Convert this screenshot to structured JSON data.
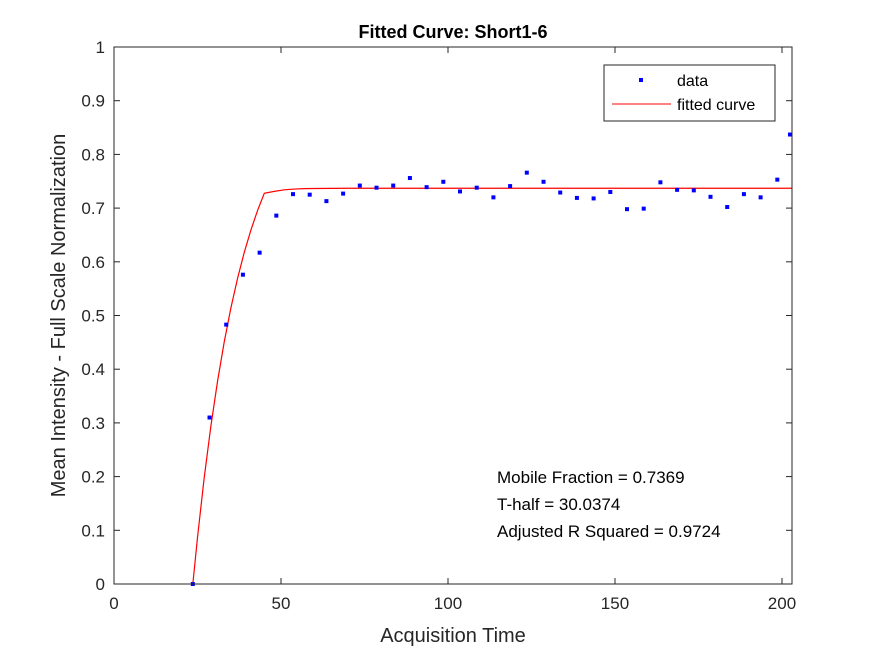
{
  "chart_data": {
    "type": "scatter",
    "title": "Fitted Curve: Short1-6",
    "xlabel": "Acquisition Time",
    "ylabel": "Mean Intensity - Full Scale Normalization",
    "xlim": [
      0,
      203
    ],
    "ylim": [
      0,
      1
    ],
    "xticks": [
      0,
      50,
      100,
      150,
      200
    ],
    "xtick_labels": [
      "0",
      "50",
      "100",
      "150",
      "200"
    ],
    "yticks": [
      0,
      0.1,
      0.2,
      0.3,
      0.4,
      0.5,
      0.6,
      0.7,
      0.8,
      0.9,
      1
    ],
    "ytick_labels": [
      "0",
      "0.1",
      "0.2",
      "0.3",
      "0.4",
      "0.5",
      "0.6",
      "0.7",
      "0.8",
      "0.9",
      "1"
    ],
    "grid": false,
    "legend_position": "top-right",
    "series": [
      {
        "name": "data",
        "kind": "points",
        "color": "#0000ff",
        "x": [
          23.6,
          28.6,
          33.6,
          38.6,
          43.6,
          48.6,
          53.6,
          58.6,
          63.6,
          68.6,
          73.6,
          78.6,
          83.6,
          88.6,
          93.6,
          98.6,
          103.6,
          108.6,
          113.6,
          118.6,
          123.6,
          128.6,
          133.6,
          138.6,
          143.6,
          148.6,
          153.6,
          158.6,
          163.6,
          168.6,
          173.6,
          178.6,
          183.6,
          188.6,
          193.6,
          198.6,
          203.0
        ],
        "y": [
          0.0,
          0.31,
          0.483,
          0.576,
          0.617,
          0.686,
          0.726,
          0.725,
          0.713,
          0.727,
          0.742,
          0.738,
          0.742,
          0.756,
          0.739,
          0.749,
          0.731,
          0.738,
          0.72,
          0.741,
          0.766,
          0.749,
          0.729,
          0.719,
          0.718,
          0.73,
          0.698,
          0.699,
          0.748,
          0.734,
          0.733,
          0.721,
          0.702,
          0.726,
          0.72,
          0.753,
          0.837
        ]
      },
      {
        "name": "fitted curve",
        "kind": "line",
        "color": "#ff0000",
        "x": [
          23.6,
          25,
          27,
          29,
          31,
          33,
          35,
          37,
          39,
          41,
          43,
          45,
          48,
          51,
          54,
          57,
          60,
          65,
          70,
          75,
          80,
          90,
          100,
          120,
          140,
          160,
          180,
          203
        ],
        "y": [
          0.0,
          0.0868,
          0.1975,
          0.2938,
          0.3776,
          0.4506,
          0.5141,
          0.5694,
          0.6175,
          0.6594,
          0.6959,
          0.7276,
          0.7311,
          0.7341,
          0.7355,
          0.7362,
          0.7365,
          0.7368,
          0.7369,
          0.7369,
          0.7369,
          0.7369,
          0.7369,
          0.7369,
          0.7369,
          0.7369,
          0.7369,
          0.7369
        ]
      }
    ],
    "annotations": [
      "Mobile Fraction = 0.7369",
      "T-half = 30.0374",
      "Adjusted R Squared = 0.9724"
    ]
  }
}
